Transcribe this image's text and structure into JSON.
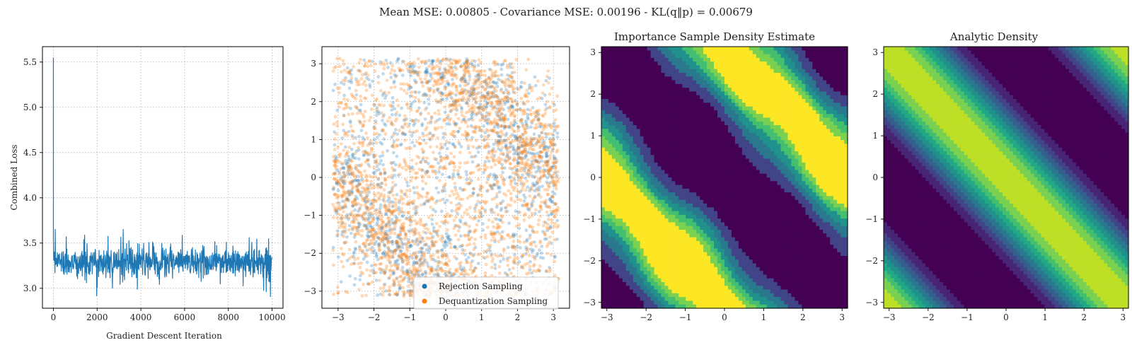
{
  "suptitle": "Mean MSE: 0.00805 - Covariance MSE: 0.00196 - KL(q‖p) = 0.00679",
  "colors": {
    "loss_line": "#1f77b4",
    "rejection": "#1f77b4",
    "dequantization": "#ff7f0e",
    "grid": "#b0b0b0",
    "viridis": [
      "#440154",
      "#482475",
      "#414487",
      "#355f8d",
      "#2a788e",
      "#21918c",
      "#22a884",
      "#44bf70",
      "#7ad151",
      "#bddf26",
      "#fde725"
    ]
  },
  "chart_data": [
    {
      "type": "line",
      "title": "",
      "xlabel": "Gradient Descent Iteration",
      "ylabel": "Combined Loss",
      "xlim": [
        -500,
        10500
      ],
      "ylim": [
        2.78,
        5.67
      ],
      "xticks": [
        0,
        2000,
        4000,
        6000,
        8000,
        10000
      ],
      "xtick_labels": [
        "0",
        "2000",
        "4000",
        "6000",
        "8000",
        "10000"
      ],
      "yticks": [
        3.0,
        3.5,
        4.0,
        4.5,
        5.0,
        5.5
      ],
      "ytick_labels": [
        "3.0",
        "3.5",
        "4.0",
        "4.5",
        "5.0",
        "5.5"
      ],
      "grid": true,
      "series": [
        {
          "x": [
            0,
            10,
            25,
            50,
            100,
            200,
            400,
            800,
            1200,
            1600,
            2000,
            2400,
            2800,
            3200,
            3600,
            4000,
            4400,
            4800,
            5200,
            5600,
            6000,
            6400,
            6800,
            7200,
            7600,
            8000,
            8400,
            8800,
            9200,
            9600,
            10000
          ],
          "values": [
            5.55,
            3.4,
            3.3,
            3.32,
            3.3,
            3.28,
            3.3,
            3.27,
            3.3,
            3.28,
            3.29,
            3.3,
            3.28,
            3.27,
            3.3,
            3.29,
            3.28,
            3.3,
            3.29,
            3.28,
            3.3,
            3.29,
            3.28,
            3.3,
            3.29,
            3.28,
            3.3,
            3.29,
            3.3,
            3.28,
            3.29
          ],
          "noise_band": {
            "min": 2.9,
            "max": 3.65
          }
        }
      ]
    },
    {
      "type": "scatter",
      "title": "",
      "xlabel": "",
      "ylabel": "",
      "xlim": [
        -3.45,
        3.45
      ],
      "ylim": [
        -3.45,
        3.45
      ],
      "xticks": [
        -3,
        -2,
        -1,
        0,
        1,
        2,
        3
      ],
      "xtick_labels": [
        "−3",
        "−2",
        "−1",
        "0",
        "1",
        "2",
        "3"
      ],
      "yticks": [
        -3,
        -2,
        -1,
        0,
        1,
        2,
        3
      ],
      "ytick_labels": [
        "−3",
        "−2",
        "−1",
        "0",
        "1",
        "2",
        "3"
      ],
      "grid": true,
      "legend_position": "lower-right",
      "domain": [
        -3.14,
        3.14
      ],
      "density_model": "two anti-diagonal bands, x + y ≈ ±π",
      "series": [
        {
          "name": "Rejection Sampling",
          "approx_count": 1500
        },
        {
          "name": "Dequantization Sampling",
          "approx_count": 2500
        }
      ]
    },
    {
      "type": "heatmap",
      "title": "Importance Sample Density Estimate",
      "xlabel": "",
      "ylabel": "",
      "xlim": [
        -3.14,
        3.14
      ],
      "ylim": [
        -3.14,
        3.14
      ],
      "xticks": [
        -3,
        -2,
        -1,
        0,
        1,
        2,
        3
      ],
      "xtick_labels": [
        "−3",
        "−2",
        "−1",
        "0",
        "1",
        "2",
        "3"
      ],
      "yticks": [
        -3,
        -2,
        -1,
        0,
        1,
        2,
        3
      ],
      "ytick_labels": [
        "−3",
        "−2",
        "−1",
        "0",
        "1",
        "2",
        "3"
      ],
      "colormap": "viridis",
      "levels": 7,
      "estimate": true
    },
    {
      "type": "heatmap",
      "title": "Analytic Density",
      "xlabel": "",
      "ylabel": "",
      "xlim": [
        -3.14,
        3.14
      ],
      "ylim": [
        -3.14,
        3.14
      ],
      "xticks": [
        -3,
        -2,
        -1,
        0,
        1,
        2,
        3
      ],
      "xtick_labels": [
        "−3",
        "−2",
        "−1",
        "0",
        "1",
        "2",
        "3"
      ],
      "yticks": [
        -3,
        -2,
        -1,
        0,
        1,
        2,
        3
      ],
      "ytick_labels": [
        "−3",
        "−2",
        "−1",
        "0",
        "1",
        "2",
        "3"
      ],
      "colormap": "viridis",
      "levels": 10,
      "estimate": false
    }
  ]
}
